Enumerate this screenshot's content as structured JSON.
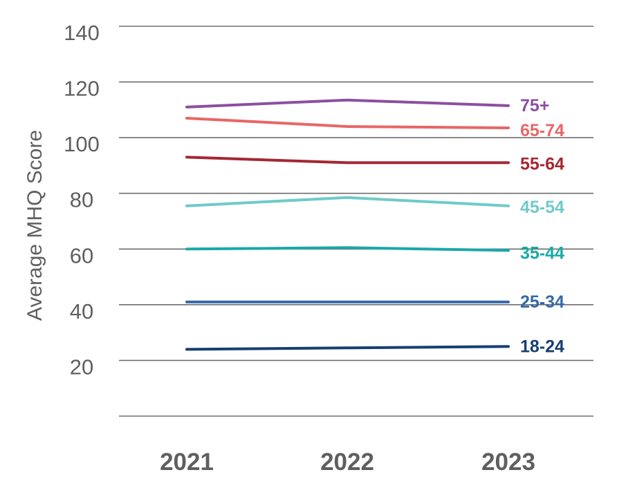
{
  "chart_data": {
    "type": "line",
    "title": "",
    "xlabel": "",
    "ylabel": "Average MHQ Score",
    "categories": [
      "2021",
      "2022",
      "2023"
    ],
    "ylim": [
      0,
      140
    ],
    "yticks": [
      20,
      40,
      60,
      80,
      100,
      120,
      140
    ],
    "grid": true,
    "legend": "inline-right",
    "series": [
      {
        "name": "75+",
        "values": [
          111,
          113.5,
          111.5
        ],
        "color": "#8b4fa3"
      },
      {
        "name": "65-74",
        "values": [
          107,
          104,
          103.5
        ],
        "color": "#e86666"
      },
      {
        "name": "55-64",
        "values": [
          93,
          91,
          91
        ],
        "color": "#a52632"
      },
      {
        "name": "45-54",
        "values": [
          75.5,
          78.5,
          75.5
        ],
        "color": "#6fcac9"
      },
      {
        "name": "35-44",
        "values": [
          60,
          60.5,
          59.5
        ],
        "color": "#1aa8a8"
      },
      {
        "name": "25-34",
        "values": [
          41,
          41,
          41
        ],
        "color": "#3568a8"
      },
      {
        "name": "18-24",
        "values": [
          24,
          24.5,
          25
        ],
        "color": "#163f72"
      }
    ]
  }
}
